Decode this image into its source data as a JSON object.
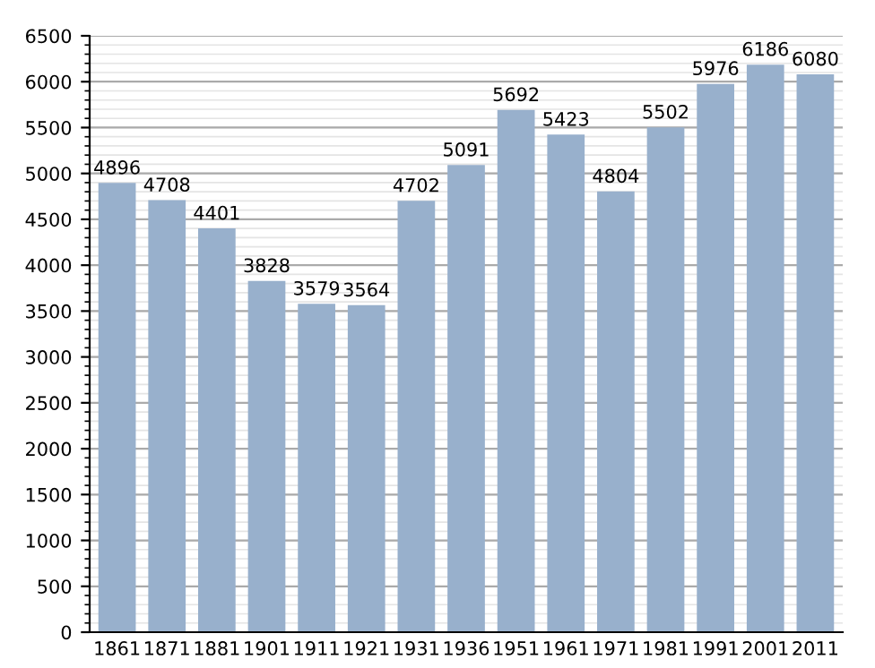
{
  "chart_data": {
    "type": "bar",
    "categories": [
      "1861",
      "1871",
      "1881",
      "1901",
      "1911",
      "1921",
      "1931",
      "1936",
      "1951",
      "1961",
      "1971",
      "1981",
      "1991",
      "2001",
      "2011"
    ],
    "values": [
      4896,
      4708,
      4401,
      3828,
      3579,
      3564,
      4702,
      5091,
      5692,
      5423,
      4804,
      5502,
      5976,
      6186,
      6080
    ],
    "color": "#98b0cc",
    "ylim": [
      0,
      6500
    ],
    "yticks": [
      0,
      500,
      1000,
      1500,
      2000,
      2500,
      3000,
      3500,
      4000,
      4500,
      5000,
      5500,
      6000,
      6500
    ],
    "grid": "y",
    "data_labels": true
  }
}
